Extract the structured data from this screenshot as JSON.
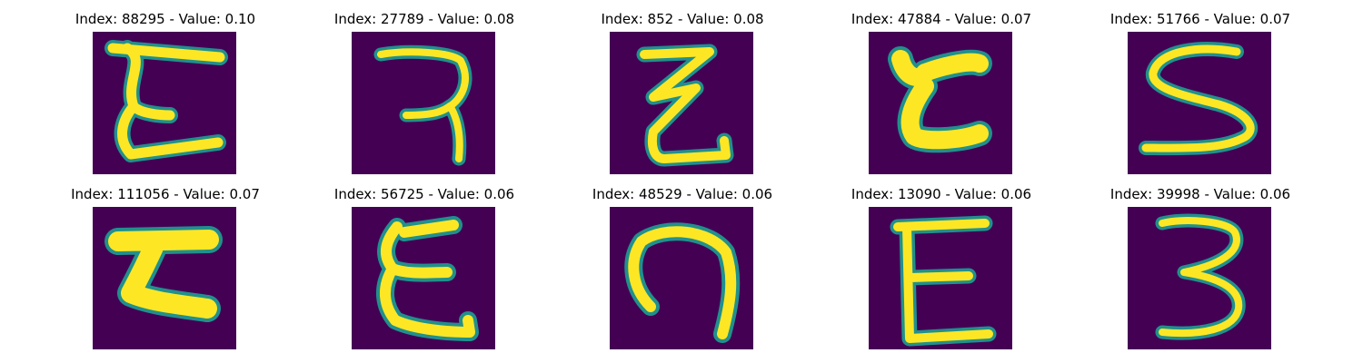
{
  "colors": {
    "background": "#440154",
    "edge": "#21908c",
    "stroke": "#fde725",
    "title_text": "#000000"
  },
  "panels": [
    {
      "title": "Index: 88295 - Value: 0.10",
      "index": 88295,
      "value": 0.1
    },
    {
      "title": "Index: 27789 - Value: 0.08",
      "index": 27789,
      "value": 0.08
    },
    {
      "title": "Index: 852 - Value: 0.08",
      "index": 852,
      "value": 0.08
    },
    {
      "title": "Index: 47884 - Value: 0.07",
      "index": 47884,
      "value": 0.07
    },
    {
      "title": "Index: 51766 - Value: 0.07",
      "index": 51766,
      "value": 0.07
    },
    {
      "title": "Index: 111056 - Value: 0.07",
      "index": 111056,
      "value": 0.07
    },
    {
      "title": "Index: 56725 - Value: 0.06",
      "index": 56725,
      "value": 0.06
    },
    {
      "title": "Index: 48529 - Value: 0.06",
      "index": 48529,
      "value": 0.06
    },
    {
      "title": "Index: 13090 - Value: 0.06",
      "index": 13090,
      "value": 0.06
    },
    {
      "title": "Index: 39998 - Value: 0.06",
      "index": 39998,
      "value": 0.06
    }
  ]
}
